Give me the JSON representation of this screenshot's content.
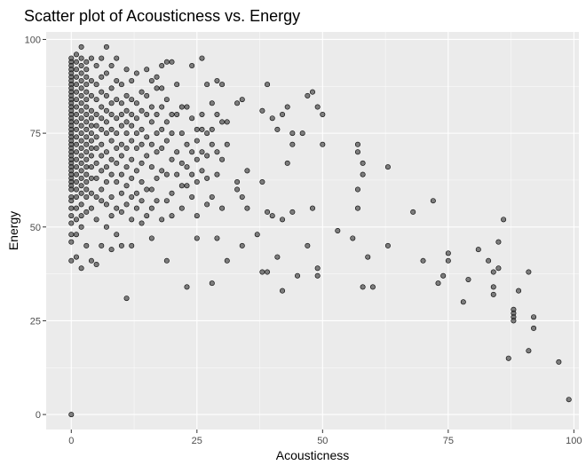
{
  "chart_data": {
    "type": "scatter",
    "title": "Scatter plot of Acousticness vs. Energy",
    "xlabel": "Acousticness",
    "ylabel": "Energy",
    "xlim": [
      -5,
      101
    ],
    "ylim": [
      -4,
      102
    ],
    "x_ticks": [
      0,
      25,
      50,
      75,
      100
    ],
    "y_ticks": [
      0,
      25,
      50,
      75,
      100
    ],
    "x_tick_labels": [
      "0",
      "25",
      "50",
      "75",
      "100"
    ],
    "y_tick_labels": [
      "0",
      "25",
      "50",
      "75",
      "100"
    ],
    "grid": true,
    "legend": "none",
    "point_color": "#4d4d4d",
    "point_fill_opacity": 0.7,
    "panel_background": "#ebebeb",
    "points": [
      [
        0,
        95
      ],
      [
        0,
        94
      ],
      [
        0,
        93
      ],
      [
        0,
        92
      ],
      [
        0,
        91
      ],
      [
        0,
        90
      ],
      [
        0,
        89
      ],
      [
        0,
        88
      ],
      [
        0,
        87
      ],
      [
        0,
        86
      ],
      [
        0,
        85
      ],
      [
        0,
        84
      ],
      [
        0,
        83
      ],
      [
        0,
        82
      ],
      [
        0,
        81
      ],
      [
        0,
        80
      ],
      [
        0,
        79
      ],
      [
        0,
        78
      ],
      [
        0,
        77
      ],
      [
        0,
        76
      ],
      [
        0,
        75
      ],
      [
        0,
        74
      ],
      [
        0,
        73
      ],
      [
        0,
        72
      ],
      [
        0,
        71
      ],
      [
        0,
        70
      ],
      [
        0,
        69
      ],
      [
        0,
        68
      ],
      [
        0,
        67
      ],
      [
        0,
        66
      ],
      [
        0,
        65
      ],
      [
        0,
        64
      ],
      [
        0,
        63
      ],
      [
        0,
        62
      ],
      [
        0,
        61
      ],
      [
        0,
        60
      ],
      [
        0,
        58
      ],
      [
        0,
        57
      ],
      [
        0,
        55
      ],
      [
        0,
        53
      ],
      [
        0,
        51
      ],
      [
        0,
        48
      ],
      [
        0,
        46
      ],
      [
        0,
        41
      ],
      [
        0,
        0
      ],
      [
        1,
        96
      ],
      [
        1,
        94
      ],
      [
        1,
        92
      ],
      [
        1,
        90
      ],
      [
        1,
        88
      ],
      [
        1,
        86
      ],
      [
        1,
        84
      ],
      [
        1,
        82
      ],
      [
        1,
        80
      ],
      [
        1,
        78
      ],
      [
        1,
        76
      ],
      [
        1,
        74
      ],
      [
        1,
        72
      ],
      [
        1,
        70
      ],
      [
        1,
        68
      ],
      [
        1,
        66
      ],
      [
        1,
        64
      ],
      [
        1,
        62
      ],
      [
        1,
        60
      ],
      [
        1,
        58
      ],
      [
        1,
        55
      ],
      [
        1,
        52
      ],
      [
        1,
        48
      ],
      [
        1,
        42
      ],
      [
        2,
        98
      ],
      [
        2,
        95
      ],
      [
        2,
        93
      ],
      [
        2,
        91
      ],
      [
        2,
        89
      ],
      [
        2,
        87
      ],
      [
        2,
        85
      ],
      [
        2,
        83
      ],
      [
        2,
        81
      ],
      [
        2,
        79
      ],
      [
        2,
        77
      ],
      [
        2,
        75
      ],
      [
        2,
        73
      ],
      [
        2,
        71
      ],
      [
        2,
        69
      ],
      [
        2,
        67
      ],
      [
        2,
        65
      ],
      [
        2,
        63
      ],
      [
        2,
        61
      ],
      [
        2,
        59
      ],
      [
        2,
        56
      ],
      [
        2,
        53
      ],
      [
        2,
        50
      ],
      [
        2,
        39
      ],
      [
        3,
        94
      ],
      [
        3,
        92
      ],
      [
        3,
        90
      ],
      [
        3,
        88
      ],
      [
        3,
        86
      ],
      [
        3,
        84
      ],
      [
        3,
        82
      ],
      [
        3,
        80
      ],
      [
        3,
        78
      ],
      [
        3,
        76
      ],
      [
        3,
        74
      ],
      [
        3,
        72
      ],
      [
        3,
        70
      ],
      [
        3,
        68
      ],
      [
        3,
        66
      ],
      [
        3,
        64
      ],
      [
        3,
        62
      ],
      [
        3,
        60
      ],
      [
        3,
        58
      ],
      [
        3,
        54
      ],
      [
        3,
        45
      ],
      [
        4,
        95
      ],
      [
        4,
        89
      ],
      [
        4,
        85
      ],
      [
        4,
        81
      ],
      [
        4,
        79
      ],
      [
        4,
        77
      ],
      [
        4,
        75
      ],
      [
        4,
        73
      ],
      [
        4,
        71
      ],
      [
        4,
        69
      ],
      [
        4,
        66
      ],
      [
        4,
        63
      ],
      [
        4,
        59
      ],
      [
        4,
        55
      ],
      [
        4,
        41
      ],
      [
        5,
        93
      ],
      [
        5,
        88
      ],
      [
        5,
        84
      ],
      [
        5,
        80
      ],
      [
        5,
        77
      ],
      [
        5,
        74
      ],
      [
        5,
        71
      ],
      [
        5,
        67
      ],
      [
        5,
        63
      ],
      [
        5,
        58
      ],
      [
        5,
        52
      ],
      [
        5,
        40
      ],
      [
        6,
        95
      ],
      [
        6,
        90
      ],
      [
        6,
        86
      ],
      [
        6,
        82
      ],
      [
        6,
        79
      ],
      [
        6,
        76
      ],
      [
        6,
        72
      ],
      [
        6,
        69
      ],
      [
        6,
        65
      ],
      [
        6,
        60
      ],
      [
        6,
        57
      ],
      [
        6,
        45
      ],
      [
        7,
        98
      ],
      [
        7,
        91
      ],
      [
        7,
        85
      ],
      [
        7,
        81
      ],
      [
        7,
        78
      ],
      [
        7,
        75
      ],
      [
        7,
        70
      ],
      [
        7,
        66
      ],
      [
        7,
        62
      ],
      [
        7,
        56
      ],
      [
        7,
        50
      ],
      [
        8,
        93
      ],
      [
        8,
        87
      ],
      [
        8,
        83
      ],
      [
        8,
        80
      ],
      [
        8,
        76
      ],
      [
        8,
        73
      ],
      [
        8,
        68
      ],
      [
        8,
        64
      ],
      [
        8,
        58
      ],
      [
        8,
        53
      ],
      [
        8,
        44
      ],
      [
        9,
        95
      ],
      [
        9,
        89
      ],
      [
        9,
        84
      ],
      [
        9,
        79
      ],
      [
        9,
        75
      ],
      [
        9,
        71
      ],
      [
        9,
        67
      ],
      [
        9,
        62
      ],
      [
        9,
        55
      ],
      [
        9,
        48
      ],
      [
        10,
        88
      ],
      [
        10,
        83
      ],
      [
        10,
        80
      ],
      [
        10,
        77
      ],
      [
        10,
        72
      ],
      [
        10,
        69
      ],
      [
        10,
        64
      ],
      [
        10,
        59
      ],
      [
        10,
        54
      ],
      [
        10,
        45
      ],
      [
        11,
        92
      ],
      [
        11,
        85
      ],
      [
        11,
        81
      ],
      [
        11,
        78
      ],
      [
        11,
        75
      ],
      [
        11,
        71
      ],
      [
        11,
        66
      ],
      [
        11,
        61
      ],
      [
        11,
        56
      ],
      [
        11,
        31
      ],
      [
        12,
        89
      ],
      [
        12,
        84
      ],
      [
        12,
        80
      ],
      [
        12,
        77
      ],
      [
        12,
        73
      ],
      [
        12,
        68
      ],
      [
        12,
        63
      ],
      [
        12,
        58
      ],
      [
        12,
        52
      ],
      [
        12,
        45
      ],
      [
        13,
        91
      ],
      [
        13,
        83
      ],
      [
        13,
        79
      ],
      [
        13,
        75
      ],
      [
        13,
        71
      ],
      [
        13,
        65
      ],
      [
        13,
        59
      ],
      [
        13,
        55
      ],
      [
        14,
        86
      ],
      [
        14,
        81
      ],
      [
        14,
        76
      ],
      [
        14,
        72
      ],
      [
        14,
        67
      ],
      [
        14,
        62
      ],
      [
        14,
        57
      ],
      [
        14,
        51
      ],
      [
        15,
        92
      ],
      [
        15,
        85
      ],
      [
        15,
        80
      ],
      [
        15,
        74
      ],
      [
        15,
        69
      ],
      [
        15,
        60
      ],
      [
        15,
        53
      ],
      [
        16,
        89
      ],
      [
        16,
        82
      ],
      [
        16,
        78
      ],
      [
        16,
        72
      ],
      [
        16,
        66
      ],
      [
        16,
        60
      ],
      [
        16,
        55
      ],
      [
        16,
        47
      ],
      [
        17,
        90
      ],
      [
        17,
        87
      ],
      [
        17,
        80
      ],
      [
        17,
        75
      ],
      [
        17,
        70
      ],
      [
        17,
        63
      ],
      [
        17,
        57
      ],
      [
        18,
        93
      ],
      [
        18,
        87
      ],
      [
        18,
        82
      ],
      [
        18,
        76
      ],
      [
        18,
        71
      ],
      [
        18,
        65
      ],
      [
        18,
        52
      ],
      [
        19,
        94
      ],
      [
        19,
        84
      ],
      [
        19,
        78
      ],
      [
        19,
        73
      ],
      [
        19,
        64
      ],
      [
        19,
        57
      ],
      [
        19,
        41
      ],
      [
        20,
        94
      ],
      [
        20,
        80
      ],
      [
        20,
        75
      ],
      [
        20,
        68
      ],
      [
        20,
        59
      ],
      [
        20,
        53
      ],
      [
        21,
        88
      ],
      [
        21,
        80
      ],
      [
        21,
        70
      ],
      [
        21,
        64
      ],
      [
        22,
        82
      ],
      [
        22,
        75
      ],
      [
        22,
        67
      ],
      [
        22,
        61
      ],
      [
        22,
        55
      ],
      [
        23,
        82
      ],
      [
        23,
        72
      ],
      [
        23,
        66
      ],
      [
        23,
        61
      ],
      [
        23,
        34
      ],
      [
        24,
        93
      ],
      [
        24,
        79
      ],
      [
        24,
        70
      ],
      [
        24,
        64
      ],
      [
        24,
        58
      ],
      [
        25,
        76
      ],
      [
        25,
        73
      ],
      [
        25,
        68
      ],
      [
        25,
        62
      ],
      [
        25,
        53
      ],
      [
        25,
        47
      ],
      [
        26,
        95
      ],
      [
        26,
        80
      ],
      [
        26,
        76
      ],
      [
        26,
        70
      ],
      [
        26,
        65
      ],
      [
        27,
        88
      ],
      [
        27,
        75
      ],
      [
        27,
        69
      ],
      [
        27,
        63
      ],
      [
        27,
        56
      ],
      [
        28,
        83
      ],
      [
        28,
        76
      ],
      [
        28,
        72
      ],
      [
        28,
        58
      ],
      [
        28,
        35
      ],
      [
        29,
        89
      ],
      [
        29,
        80
      ],
      [
        29,
        70
      ],
      [
        29,
        64
      ],
      [
        29,
        47
      ],
      [
        30,
        88
      ],
      [
        30,
        78
      ],
      [
        30,
        68
      ],
      [
        30,
        55
      ],
      [
        31,
        78
      ],
      [
        31,
        72
      ],
      [
        31,
        41
      ],
      [
        33,
        83
      ],
      [
        33,
        62
      ],
      [
        33,
        60
      ],
      [
        34,
        84
      ],
      [
        34,
        58
      ],
      [
        34,
        45
      ],
      [
        35,
        65
      ],
      [
        35,
        55
      ],
      [
        37,
        48
      ],
      [
        38,
        81
      ],
      [
        38,
        62
      ],
      [
        38,
        38
      ],
      [
        39,
        88
      ],
      [
        39,
        54
      ],
      [
        39,
        38
      ],
      [
        40,
        79
      ],
      [
        40,
        53
      ],
      [
        41,
        76
      ],
      [
        41,
        42
      ],
      [
        42,
        80
      ],
      [
        42,
        52
      ],
      [
        42,
        33
      ],
      [
        43,
        82
      ],
      [
        43,
        67
      ],
      [
        44,
        75
      ],
      [
        44,
        72
      ],
      [
        44,
        54
      ],
      [
        45,
        37
      ],
      [
        46,
        75
      ],
      [
        47,
        85
      ],
      [
        47,
        45
      ],
      [
        48,
        86
      ],
      [
        48,
        55
      ],
      [
        49,
        82
      ],
      [
        49,
        39
      ],
      [
        49,
        37
      ],
      [
        50,
        80
      ],
      [
        50,
        72
      ],
      [
        53,
        49
      ],
      [
        56,
        47
      ],
      [
        57,
        72
      ],
      [
        57,
        70
      ],
      [
        57,
        60
      ],
      [
        57,
        55
      ],
      [
        58,
        67
      ],
      [
        58,
        64
      ],
      [
        58,
        34
      ],
      [
        59,
        42
      ],
      [
        60,
        34
      ],
      [
        63,
        66
      ],
      [
        63,
        45
      ],
      [
        68,
        54
      ],
      [
        70,
        41
      ],
      [
        72,
        57
      ],
      [
        73,
        35
      ],
      [
        74,
        37
      ],
      [
        75,
        43
      ],
      [
        75,
        41
      ],
      [
        78,
        30
      ],
      [
        79,
        36
      ],
      [
        81,
        44
      ],
      [
        83,
        41
      ],
      [
        84,
        38
      ],
      [
        84,
        34
      ],
      [
        84,
        32
      ],
      [
        85,
        46
      ],
      [
        85,
        39
      ],
      [
        86,
        52
      ],
      [
        87,
        15
      ],
      [
        88,
        28
      ],
      [
        88,
        27
      ],
      [
        88,
        26
      ],
      [
        88,
        25
      ],
      [
        89,
        33
      ],
      [
        91,
        38
      ],
      [
        91,
        17
      ],
      [
        92,
        26
      ],
      [
        92,
        23
      ],
      [
        97,
        14
      ],
      [
        99,
        4
      ]
    ]
  }
}
